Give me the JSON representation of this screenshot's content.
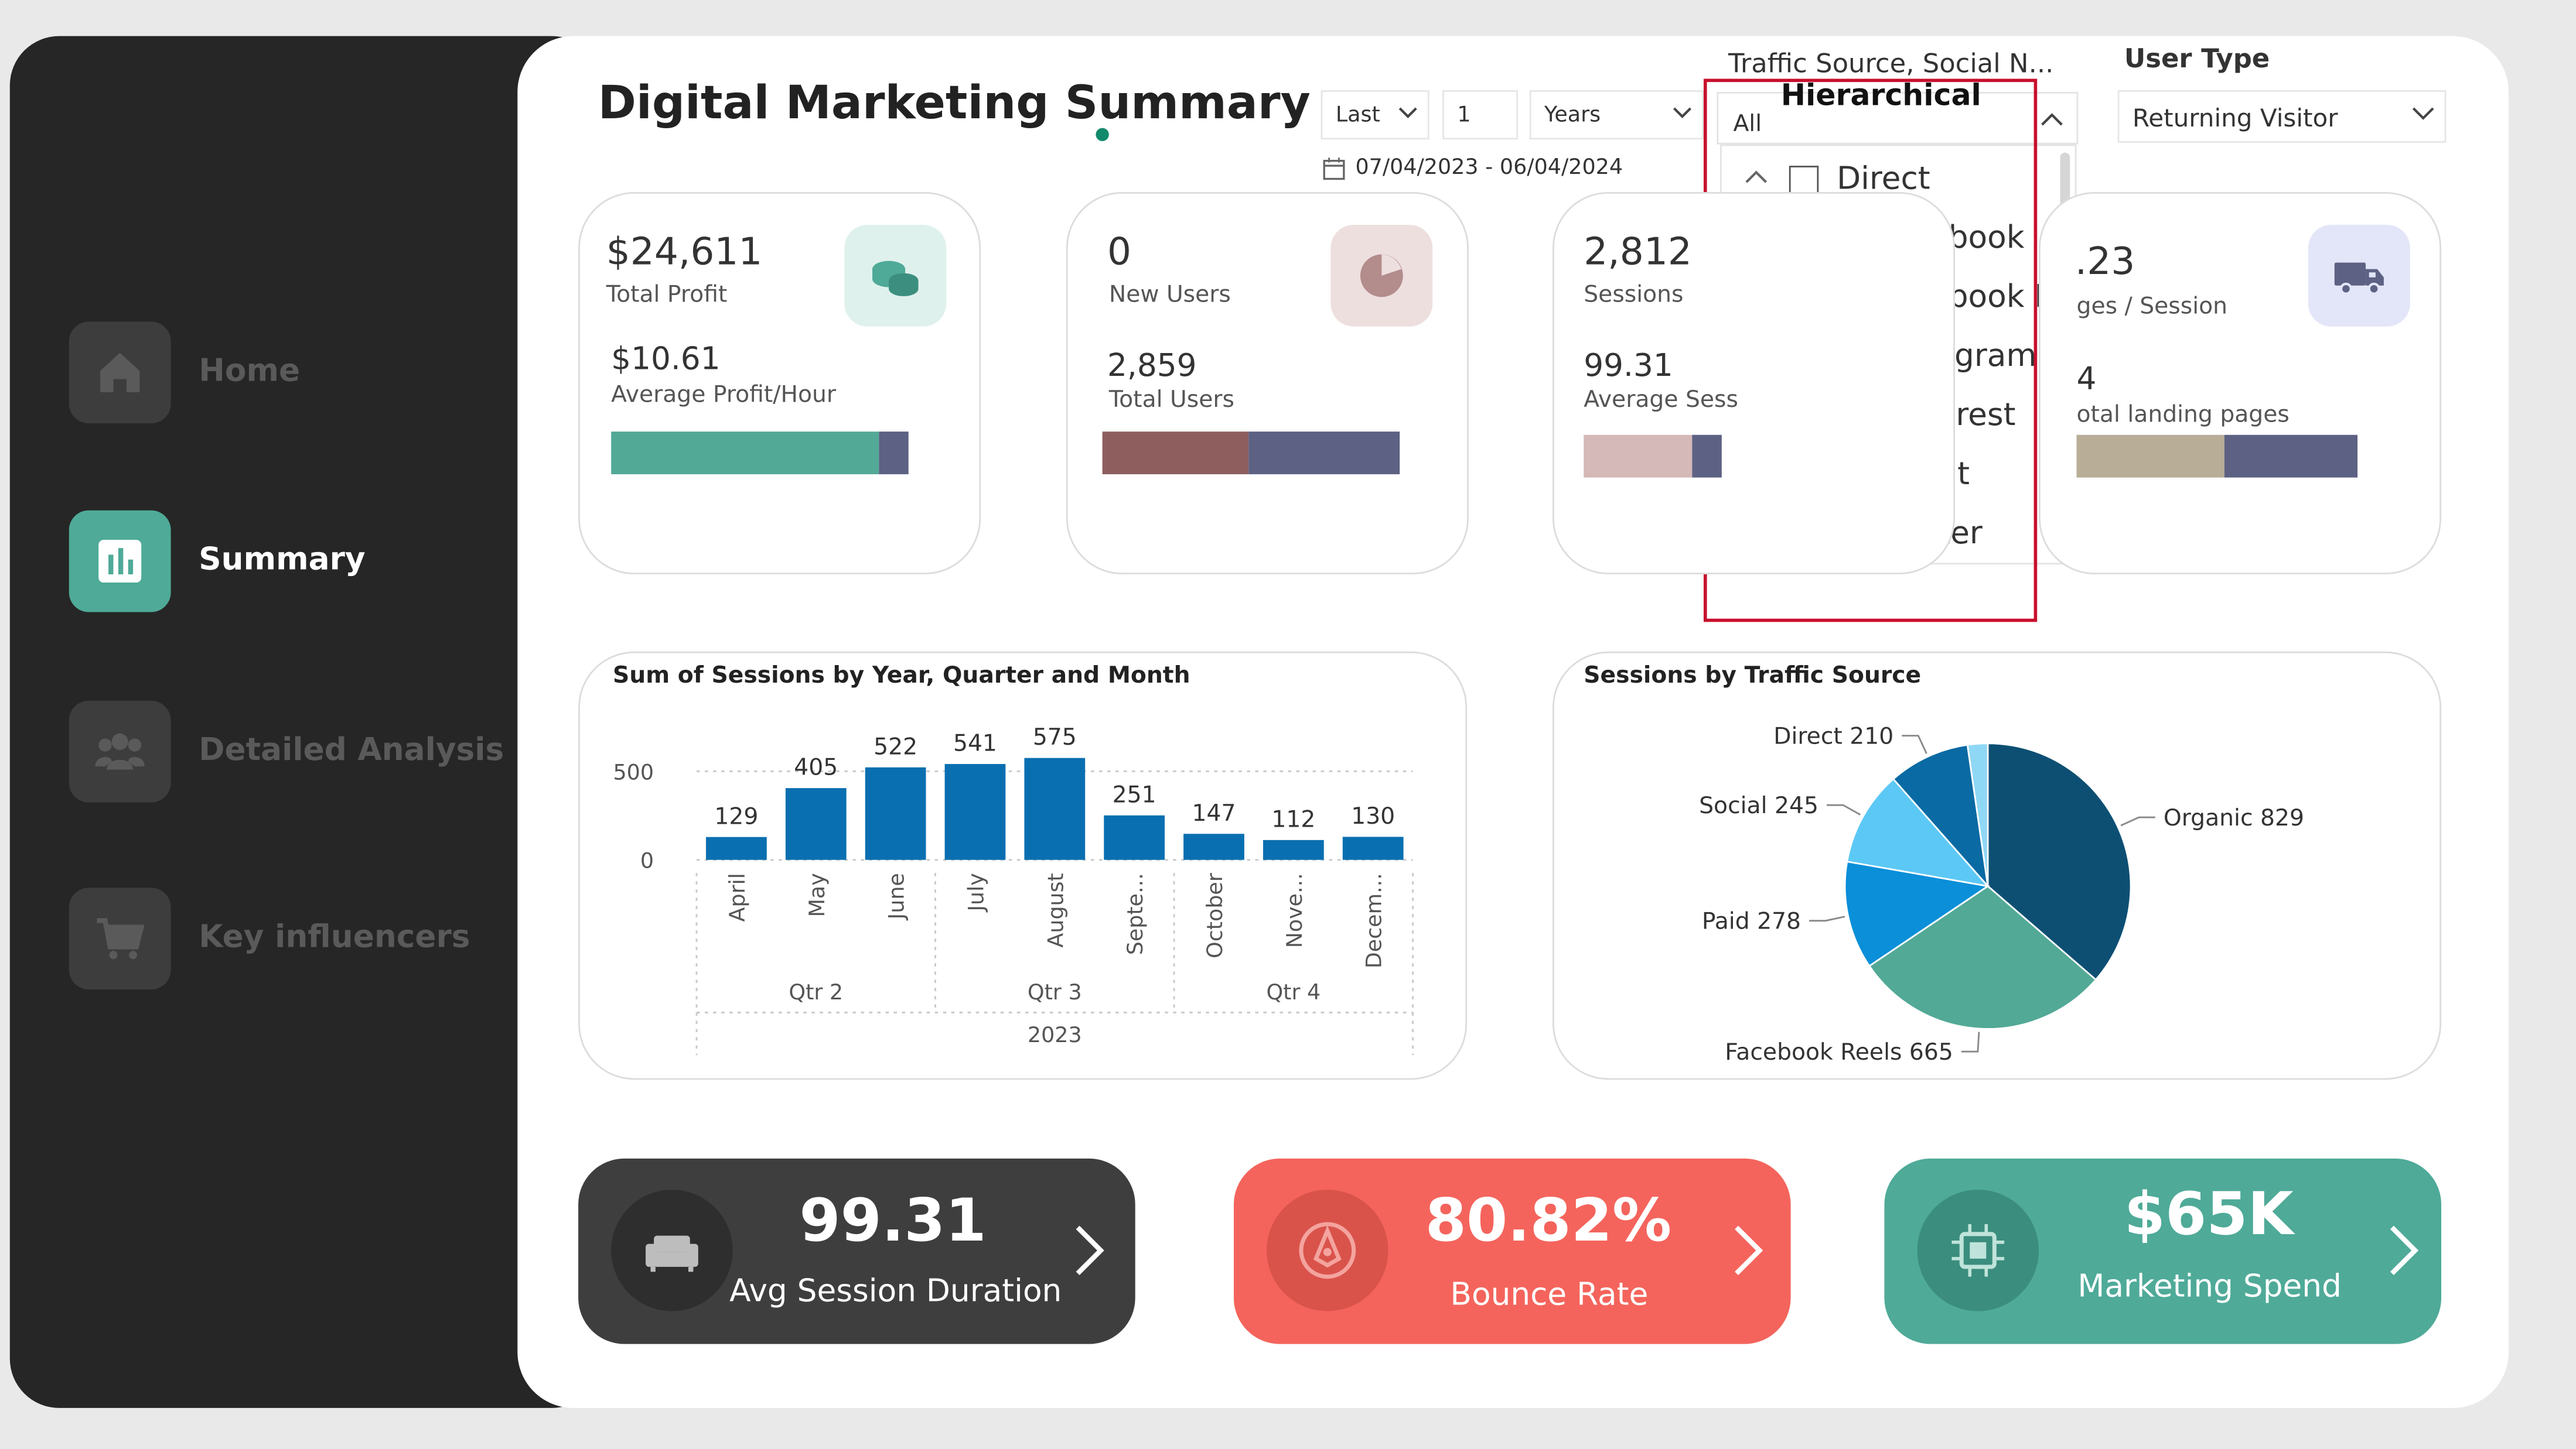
{
  "page": {
    "title": "Digital Marketing Summary"
  },
  "nav": {
    "items": [
      {
        "label": "Home",
        "icon": "home-icon"
      },
      {
        "label": "Summary",
        "icon": "bar-chart-icon"
      },
      {
        "label": "Detailed Analysis",
        "icon": "users-icon"
      },
      {
        "label": "Key influencers",
        "icon": "cart-icon"
      }
    ]
  },
  "date_filter": {
    "relative": "Last",
    "count": "1",
    "unit": "Years",
    "range": "07/04/2023 - 06/04/2024"
  },
  "traffic_filter": {
    "label": "Traffic Source, Social N...",
    "mode": "Hierarchical",
    "value": "All",
    "items": {
      "direct": "Direct",
      "facebook": "Facebook",
      "facebook_reels": "Facebook R...",
      "instagram": "Instagram",
      "pinterest": "Pinterest",
      "reddit": "reddit",
      "twitter": "Twitter"
    }
  },
  "user_type": {
    "label": "User Type",
    "value": "Returning Visitor"
  },
  "kpis": {
    "profit": {
      "value": "$24,611",
      "label": "Total Profit",
      "sub_value": "$10.61",
      "sub_label": "Average Profit/Hour",
      "bar": [
        0.9,
        0.1
      ],
      "colors": [
        "#52a996",
        "#5d6183"
      ]
    },
    "users": {
      "value": "0",
      "label": "New Users",
      "sub_value": "2,859",
      "sub_label": "Total Users",
      "bar": [
        0.49,
        0.51
      ],
      "colors": [
        "#8e5e5f",
        "#5d6183"
      ]
    },
    "sessions": {
      "value": "2,812",
      "label": "Sessions",
      "sub_value": "99.31",
      "sub_label": "Average Sess",
      "colors": [
        "#d5b8b8",
        "#5d6183"
      ]
    },
    "pages": {
      "value": ".23",
      "label": "ges / Session",
      "sub_value": "4",
      "sub_label": "otal landing pages",
      "colors": [
        "#b8ad97",
        "#5d6183"
      ]
    }
  },
  "chart_data": [
    {
      "type": "bar",
      "title": "Sum of Sessions by Year, Quarter and Month",
      "categories": [
        "April",
        "May",
        "June",
        "July",
        "August",
        "Septe...",
        "October",
        "Nove...",
        "Decem..."
      ],
      "values": [
        129,
        405,
        522,
        541,
        575,
        251,
        147,
        112,
        130
      ],
      "quarters": [
        "Qtr 2",
        "Qtr 3",
        "Qtr 4"
      ],
      "year": "2023",
      "yticks": [
        "500",
        "0"
      ],
      "ylim": [
        0,
        600
      ],
      "color": "#0a6fb0"
    },
    {
      "type": "pie",
      "title": "Sessions by Traffic Source",
      "slices": [
        {
          "name": "Organic",
          "value": 829,
          "label": "Organic 829",
          "color": "#0d4f73"
        },
        {
          "name": "Facebook Reels",
          "value": 665,
          "label": "Facebook Reels 665",
          "color": "#52a996"
        },
        {
          "name": "Paid",
          "value": 278,
          "label": "Paid 278",
          "color": "#0a8fd8"
        },
        {
          "name": "Social",
          "value": 245,
          "label": "Social 245",
          "color": "#5cc8f5"
        },
        {
          "name": "Direct",
          "value": 210,
          "label": "Direct 210",
          "color": "#0a6aa3"
        },
        {
          "name": "",
          "value": 52,
          "label": "",
          "color": "#8fd8f5"
        }
      ]
    }
  ],
  "bottom_cards": {
    "duration": {
      "value": "99.31",
      "label": "Avg Session Duration",
      "bg": "#3e3e3e",
      "icon": "sofa-icon"
    },
    "bounce": {
      "value": "80.82%",
      "label": "Bounce Rate",
      "bg": "#f4645c",
      "icon": "pen-icon"
    },
    "spend": {
      "value": "$65K",
      "label": "Marketing Spend",
      "bg": "#4faa98",
      "icon": "chip-icon"
    }
  }
}
